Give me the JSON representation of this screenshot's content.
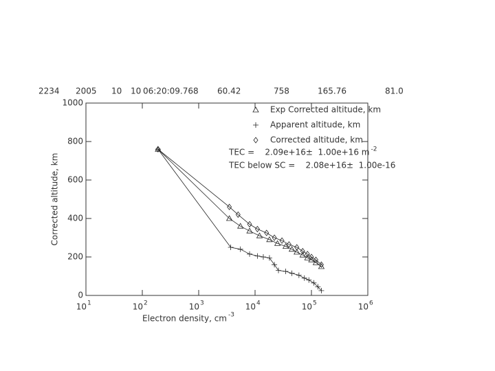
{
  "chart_data": {
    "type": "scatter-line",
    "header": [
      "2234",
      "2005",
      "10",
      "10",
      "06:20:09.768",
      "60.42",
      "758",
      "165.76",
      "81.0"
    ],
    "xlabel": "Electron density, cm",
    "xlabel_exponent": "-3",
    "ylabel": "Corrected altitude, km",
    "xscale": "log",
    "xlim": [
      10,
      1000000
    ],
    "ylim": [
      0,
      1000
    ],
    "xticks": [
      {
        "value": 10,
        "label": "10",
        "exponent": "1"
      },
      {
        "value": 100,
        "label": "10",
        "exponent": "2"
      },
      {
        "value": 1000,
        "label": "10",
        "exponent": "3"
      },
      {
        "value": 10000,
        "label": "10",
        "exponent": "4"
      },
      {
        "value": 100000,
        "label": "10",
        "exponent": "5"
      },
      {
        "value": 1000000,
        "label": "10",
        "exponent": "6"
      }
    ],
    "yticks": [
      0,
      200,
      400,
      600,
      800,
      1000
    ],
    "series": [
      {
        "name": "Exp Corrected altitude, km",
        "marker": "triangle",
        "color": "#222222",
        "x": [
          190,
          3500,
          5500,
          8000,
          12000,
          18000,
          25000,
          35000,
          45000,
          55000,
          70000,
          85000,
          100000,
          120000,
          150000
        ],
        "values": [
          760,
          400,
          360,
          335,
          310,
          290,
          270,
          255,
          240,
          225,
          210,
          195,
          185,
          170,
          150
        ]
      },
      {
        "name": "Apparent altitude, km",
        "marker": "plus",
        "color": "#222222",
        "x": [
          190,
          3700,
          5500,
          8000,
          11000,
          14000,
          18000,
          22000,
          26000,
          35000,
          45000,
          60000,
          75000,
          90000,
          110000,
          130000,
          150000
        ],
        "values": [
          760,
          250,
          240,
          215,
          205,
          200,
          195,
          160,
          130,
          125,
          115,
          105,
          90,
          80,
          65,
          45,
          25
        ]
      },
      {
        "name": "Corrected altitude, km",
        "marker": "diamond",
        "color": "#222222",
        "x": [
          190,
          3500,
          5000,
          8000,
          11000,
          16000,
          22000,
          30000,
          40000,
          55000,
          70000,
          85000,
          100000,
          120000,
          150000
        ],
        "values": [
          760,
          460,
          420,
          370,
          345,
          325,
          300,
          285,
          265,
          250,
          230,
          215,
          200,
          185,
          160
        ]
      }
    ],
    "annotations": [
      {
        "text": "TEC =    2.09e+16±  1.00e+16 m",
        "exponent": "-2"
      },
      {
        "text": "TEC below SC =    2.08e+16±  1.00e-16"
      }
    ]
  }
}
